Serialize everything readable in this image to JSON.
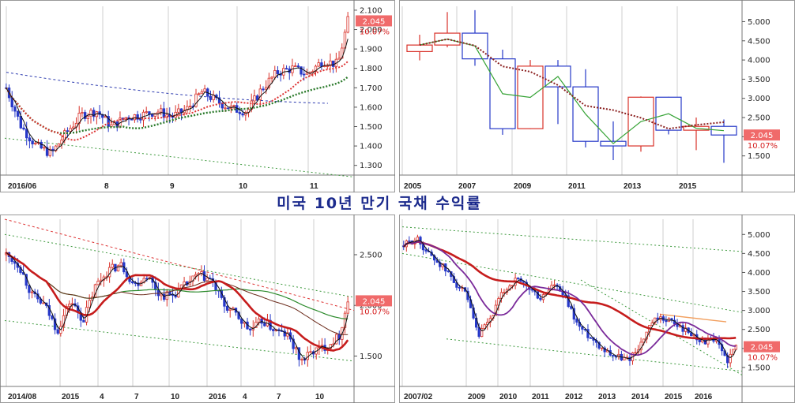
{
  "title": "미국 10년 만기 국채 수익률",
  "colors": {
    "up": "#d9322a",
    "down": "#2638c8",
    "badge": "#f06a6a",
    "text": "#222222"
  },
  "chart_data": [
    {
      "id": "p1",
      "type": "candlestick",
      "title": "",
      "last_value": "2.045",
      "change": "10.07%",
      "x_labels": [
        "2016/06",
        "8",
        "9",
        "10",
        "11"
      ],
      "y_ticks": [
        "2.100",
        "2.000",
        "1.900",
        "1.800",
        "1.700",
        "1.600",
        "1.500",
        "1.400",
        "1.300"
      ],
      "ylim": [
        1.25,
        2.12
      ],
      "x_points": [
        0,
        6,
        12,
        18,
        24,
        30,
        36,
        42,
        48,
        54,
        60,
        66,
        72,
        78,
        84,
        90,
        96,
        102,
        108,
        114,
        120,
        126,
        132,
        136
      ],
      "close": [
        1.7,
        1.5,
        1.4,
        1.36,
        1.47,
        1.56,
        1.58,
        1.5,
        1.55,
        1.56,
        1.58,
        1.55,
        1.59,
        1.68,
        1.63,
        1.59,
        1.58,
        1.7,
        1.78,
        1.8,
        1.77,
        1.84,
        1.82,
        2.045
      ],
      "overlays": [
        "moving averages",
        "dashed channel lines"
      ]
    },
    {
      "id": "p2",
      "type": "candlestick",
      "title": "",
      "last_value": "2.045",
      "change": "10.07%",
      "x_labels": [
        "2005",
        "2007",
        "2009",
        "2011",
        "2013",
        "2015"
      ],
      "y_ticks": [
        "5.000",
        "4.500",
        "4.000",
        "3.500",
        "3.000",
        "2.500",
        "2.000",
        "1.500"
      ],
      "ylim": [
        1.0,
        5.4
      ],
      "candles": [
        {
          "year": 2005,
          "open": 4.22,
          "close": 4.39,
          "high": 4.66,
          "low": 3.99
        },
        {
          "year": 2006,
          "open": 4.39,
          "close": 4.7,
          "high": 5.25,
          "low": 4.33
        },
        {
          "year": 2007,
          "open": 4.7,
          "close": 4.03,
          "high": 5.3,
          "low": 3.85
        },
        {
          "year": 2008,
          "open": 4.03,
          "close": 2.21,
          "high": 4.27,
          "low": 2.05
        },
        {
          "year": 2009,
          "open": 2.21,
          "close": 3.84,
          "high": 4.0,
          "low": 2.2
        },
        {
          "year": 2010,
          "open": 3.84,
          "close": 3.3,
          "high": 4.0,
          "low": 2.33
        },
        {
          "year": 2011,
          "open": 3.3,
          "close": 1.88,
          "high": 3.76,
          "low": 1.72
        },
        {
          "year": 2012,
          "open": 1.88,
          "close": 1.76,
          "high": 2.4,
          "low": 1.39
        },
        {
          "year": 2013,
          "open": 1.76,
          "close": 3.03,
          "high": 3.05,
          "low": 1.61
        },
        {
          "year": 2014,
          "open": 3.03,
          "close": 2.17,
          "high": 3.04,
          "low": 2.06
        },
        {
          "year": 2015,
          "open": 2.17,
          "close": 2.27,
          "high": 2.5,
          "low": 1.65
        },
        {
          "year": 2016,
          "open": 2.27,
          "close": 2.045,
          "high": 2.45,
          "low": 1.32
        }
      ]
    },
    {
      "id": "p3",
      "type": "candlestick",
      "title": "",
      "last_value": "2.045",
      "change": "10.07%",
      "x_labels": [
        "2014/08",
        "2015",
        "4",
        "7",
        "10",
        "2016",
        "4",
        "7",
        "10"
      ],
      "y_ticks": [
        "2.500",
        "2.000",
        "1.500"
      ],
      "ylim": [
        1.2,
        2.85
      ],
      "x_points": [
        0,
        6,
        12,
        18,
        24,
        30,
        36,
        42,
        48,
        54,
        60,
        66,
        72,
        78,
        84,
        90,
        96,
        102,
        108,
        114,
        120,
        126,
        132,
        138,
        144,
        150,
        156,
        160
      ],
      "close": [
        2.5,
        2.4,
        2.1,
        2.0,
        1.75,
        2.05,
        1.85,
        2.2,
        2.35,
        2.4,
        2.2,
        2.3,
        2.1,
        2.1,
        2.2,
        2.3,
        2.25,
        2.0,
        1.9,
        1.75,
        1.85,
        1.75,
        1.7,
        1.45,
        1.55,
        1.6,
        1.7,
        2.045
      ]
    },
    {
      "id": "p4",
      "type": "candlestick",
      "title": "",
      "last_value": "2.045",
      "change": "10.07%",
      "x_labels": [
        "2007/02",
        "2009",
        "2010",
        "2011",
        "2012",
        "2013",
        "2014",
        "2015",
        "2016"
      ],
      "y_ticks": [
        "5.000",
        "4.500",
        "4.000",
        "3.500",
        "3.000",
        "2.500",
        "2.000",
        "1.500"
      ],
      "ylim": [
        1.0,
        5.4
      ],
      "x_points": [
        0,
        6,
        12,
        18,
        24,
        30,
        36,
        42,
        48,
        54,
        60,
        66,
        72,
        78,
        84,
        90,
        96,
        102,
        108,
        114,
        120,
        126,
        132,
        138,
        144,
        150,
        156,
        160
      ],
      "close": [
        4.7,
        4.9,
        4.5,
        4.2,
        3.8,
        3.4,
        2.3,
        2.8,
        3.5,
        3.8,
        3.6,
        3.3,
        3.7,
        3.3,
        2.6,
        2.3,
        2.0,
        1.8,
        1.7,
        2.1,
        2.7,
        2.8,
        2.6,
        2.4,
        2.2,
        2.2,
        1.7,
        2.045
      ]
    }
  ]
}
